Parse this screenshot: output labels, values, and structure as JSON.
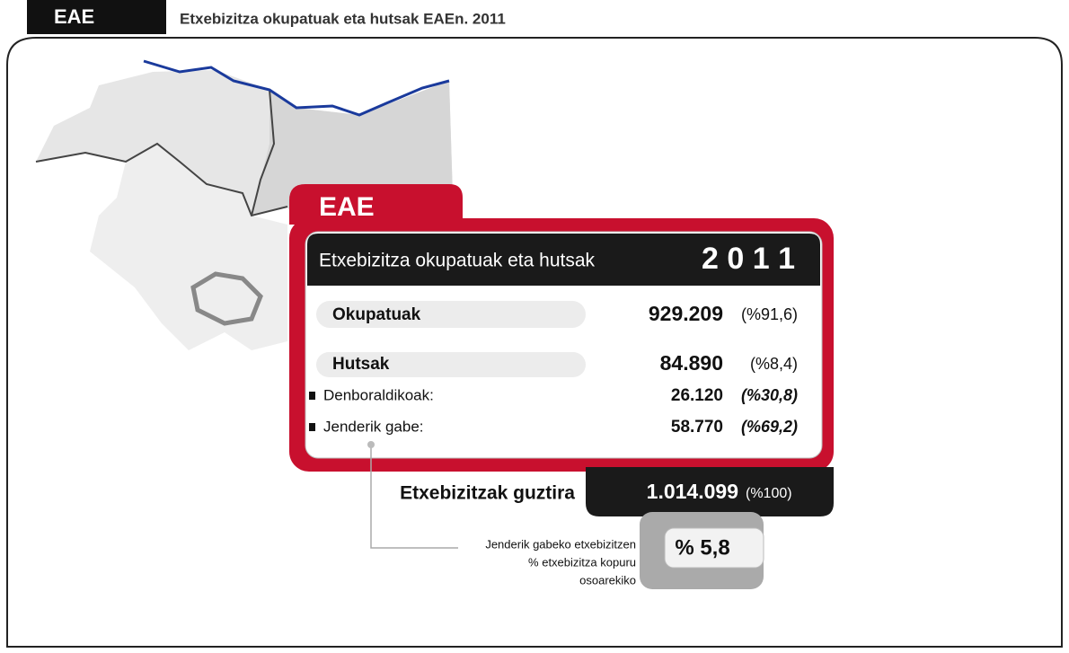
{
  "header": {
    "tag": "EAE",
    "title": "Etxebizitza okupatuak eta hutsak EAEn. 2011"
  },
  "card": {
    "tag": "EAE",
    "heading": "Etxebizitza okupatuak eta hutsak",
    "year": "2 0 1 1",
    "rows": [
      {
        "label": "Okupatuak",
        "value": "929.209",
        "share": "(%91,6)"
      },
      {
        "label": "Hutsak",
        "value": "84.890",
        "share": "(%8,4)"
      },
      {
        "label": "Denboraldikoak:",
        "value": "26.120",
        "share": "(%30,8)"
      },
      {
        "label": "Jenderik gabe:",
        "value": "58.770",
        "share": "(%69,2)"
      }
    ]
  },
  "total": {
    "label": "Etxebizitzak guztira",
    "value": "1.014.099",
    "share": "(%100)"
  },
  "note": {
    "lines": [
      "Jenderik gabeko etxebizitzen",
      "% etxebizitza kopuru",
      "osoarekiko"
    ],
    "value": "% 5,8"
  }
}
